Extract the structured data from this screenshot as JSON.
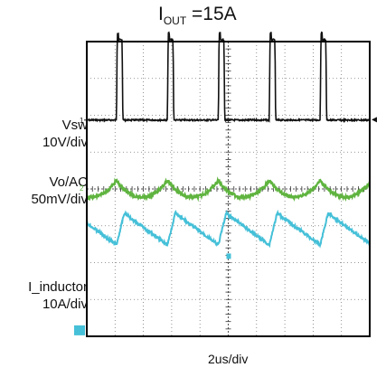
{
  "title": {
    "main": "I",
    "sub": "OUT",
    "rest": " =15A"
  },
  "channels": [
    {
      "name": "Vsw",
      "scale": "10V/div",
      "color": "#111111",
      "marker": "1"
    },
    {
      "name": "Vo/AC",
      "scale": "50mV/div",
      "color": "#5fb43f",
      "marker": "2"
    },
    {
      "name": "I_inductor",
      "scale": "10A/div",
      "color": "#45c0d8",
      "marker": "4"
    }
  ],
  "x_scale": "2us/div",
  "chart_data": {
    "type": "line",
    "title": "IOUT =15A",
    "xlabel": "2us/div",
    "ylabel": "",
    "divisions": {
      "x": 10,
      "y": 8
    },
    "grid": true,
    "xlim": [
      0,
      20
    ],
    "ylim": [
      -4,
      4
    ],
    "switching_period_us": 3.6,
    "pulse_starts_us": [
      2.1,
      5.7,
      9.3,
      12.9,
      16.5
    ],
    "series": [
      {
        "name": "Vsw",
        "units": "div",
        "baseline": 1.87,
        "pulse_height": 2.18,
        "pulse_width_us": 0.45
      },
      {
        "name": "Vo/AC",
        "units": "div",
        "center": 0.0,
        "peak_to_peak": 0.45
      },
      {
        "name": "I_inductor",
        "units": "div",
        "min": -1.52,
        "max": -0.66
      }
    ]
  }
}
